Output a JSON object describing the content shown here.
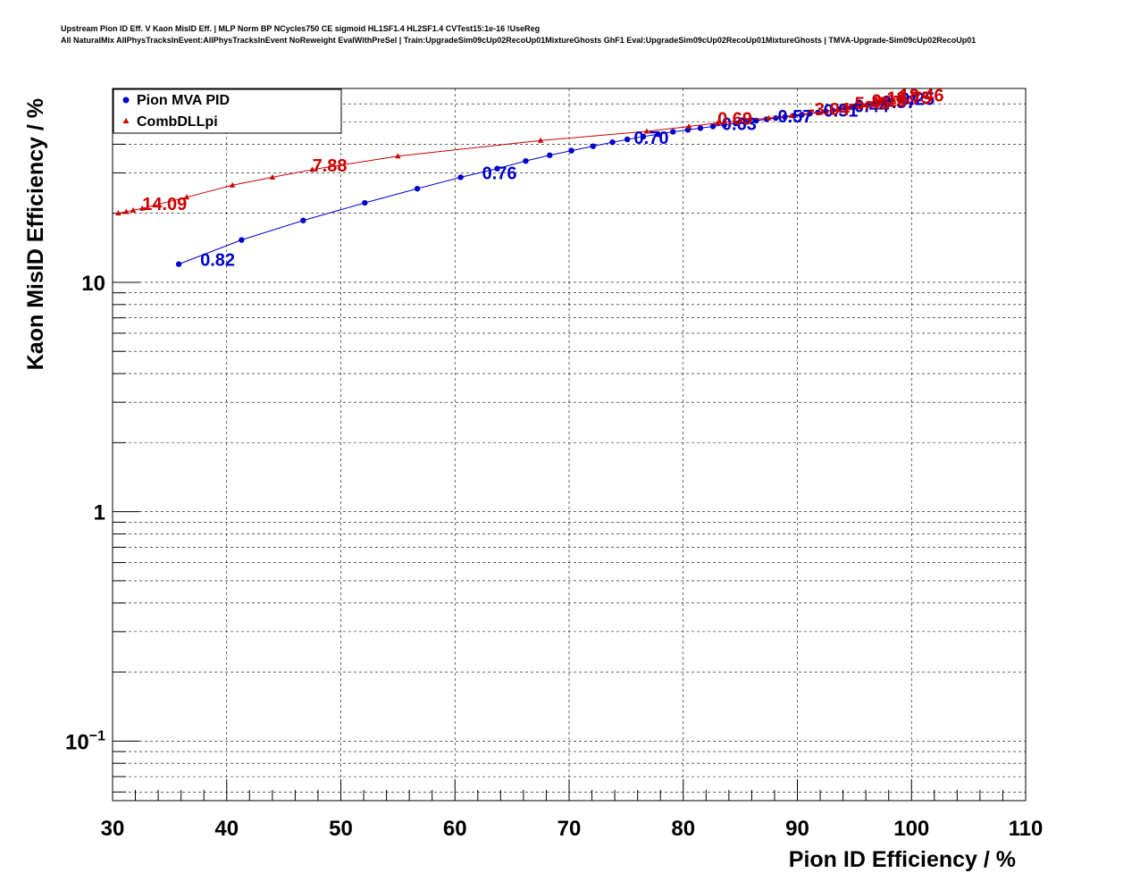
{
  "header": {
    "title_line1": "Upstream Pion ID Eff. V Kaon MisID Eff. | MLP Norm BP NCycles750 CE sigmoid HL1SF1.4 HL2SF1.4 CVTest15:1e-16 !UseReg",
    "title_line2": "All NaturalMix AllPhysTracksInEvent:AllPhysTracksInEvent NoReweight EvalWithPreSel | Train:UpgradeSim09cUp02RecoUp01MixtureGhosts GhF1 Eval:UpgradeSim09cUp02RecoUp01MixtureGhosts | TMVA-Upgrade-Sim09cUp02RecoUp01"
  },
  "chart_data": {
    "type": "line",
    "xlabel": "Pion ID Efficiency / %",
    "ylabel": "Kaon MisID Efficiency / %",
    "xlim": [
      30,
      110
    ],
    "ylim": [
      0.055,
      70
    ],
    "yscale": "log",
    "xticks": [
      30,
      40,
      50,
      60,
      70,
      80,
      90,
      100,
      110
    ],
    "xtick_labels": [
      "30",
      "40",
      "50",
      "60",
      "70",
      "80",
      "90",
      "100",
      "110"
    ],
    "ytick_labels": [
      {
        "value": 10,
        "base": "10",
        "exp": ""
      },
      {
        "value": 1,
        "base": "1",
        "exp": ""
      },
      {
        "value": 0.1,
        "base": "10",
        "exp": "−1"
      }
    ],
    "grid": true,
    "legend_position": "top-left",
    "series": [
      {
        "name": "Pion MVA PID",
        "color": "#0000cc",
        "marker": "circle",
        "x": [
          35.8,
          41.3,
          46.7,
          52.1,
          56.7,
          60.5,
          63.7,
          66.2,
          68.3,
          70.2,
          72.1,
          73.8,
          75.1,
          76.5,
          77.8,
          79.1,
          80.4,
          81.5,
          82.6,
          83.6,
          84.6,
          85.5,
          86.4,
          87.3,
          88.1,
          88.9,
          89.7,
          90.4,
          91.1,
          91.8,
          92.5,
          93.1,
          93.7,
          94.3,
          94.9,
          95.5,
          96.1,
          96.6,
          97.1,
          97.6,
          98.1
        ],
        "y": [
          12.0,
          15.3,
          18.6,
          22.2,
          25.6,
          28.7,
          31.3,
          33.8,
          35.8,
          37.5,
          39.2,
          40.8,
          42.0,
          43.2,
          44.2,
          45.3,
          46.2,
          47.0,
          47.8,
          48.6,
          49.3,
          50.0,
          50.7,
          51.4,
          52.0,
          52.6,
          53.2,
          53.8,
          54.4,
          55.0,
          55.6,
          56.2,
          56.8,
          57.4,
          58.0,
          58.6,
          59.2,
          59.8,
          60.4,
          61.0,
          61.6
        ],
        "labels": [
          {
            "x": 35.8,
            "y": 12.0,
            "text": "0.82"
          },
          {
            "x": 60.5,
            "y": 28.7,
            "text": "0.76"
          },
          {
            "x": 73.8,
            "y": 40.8,
            "text": "0.70"
          },
          {
            "x": 81.5,
            "y": 47.0,
            "text": "0.63"
          },
          {
            "x": 86.4,
            "y": 50.7,
            "text": "0.57"
          },
          {
            "x": 90.4,
            "y": 53.8,
            "text": "0.51"
          },
          {
            "x": 93.1,
            "y": 56.2,
            "text": "0.44"
          },
          {
            "x": 95.5,
            "y": 58.6,
            "text": "0.37"
          },
          {
            "x": 97.1,
            "y": 60.4,
            "text": "0.25"
          }
        ]
      },
      {
        "name": "CombDLLpi",
        "color": "#cc0000",
        "marker": "triangle",
        "x": [
          30.5,
          31.2,
          31.8,
          32.6,
          36.5,
          40.5,
          44.0,
          47.5,
          55.0,
          67.5,
          76.8,
          80.5,
          83.0,
          85.0,
          87.5,
          89.5,
          91.0,
          92.5,
          93.5,
          94.5,
          95.3,
          96.0,
          96.7,
          97.3,
          97.9,
          98.4,
          98.9,
          99.4
        ],
        "y": [
          20.0,
          20.3,
          20.6,
          21.0,
          23.5,
          26.5,
          28.7,
          31.0,
          35.5,
          41.5,
          45.5,
          47.8,
          49.5,
          50.6,
          52.0,
          53.3,
          54.5,
          55.8,
          56.7,
          57.6,
          58.4,
          59.3,
          60.1,
          61.0,
          61.8,
          62.6,
          63.4,
          64.2
        ],
        "labels": [
          {
            "x": 32.6,
            "y": 21.0,
            "text": "14.09"
          },
          {
            "x": 47.5,
            "y": 31.0,
            "text": "7.88"
          },
          {
            "x": 83.0,
            "y": 49.5,
            "text": "0.69"
          },
          {
            "x": 91.0,
            "y": 54.5,
            "text": "-3.04"
          },
          {
            "x": 94.5,
            "y": 57.6,
            "text": "-5.45"
          },
          {
            "x": 96.0,
            "y": 59.3,
            "text": "-9.15"
          },
          {
            "x": 97.3,
            "y": 61.0,
            "text": "-13.75"
          },
          {
            "x": 98.4,
            "y": 62.6,
            "text": "-18.46"
          }
        ]
      }
    ]
  }
}
